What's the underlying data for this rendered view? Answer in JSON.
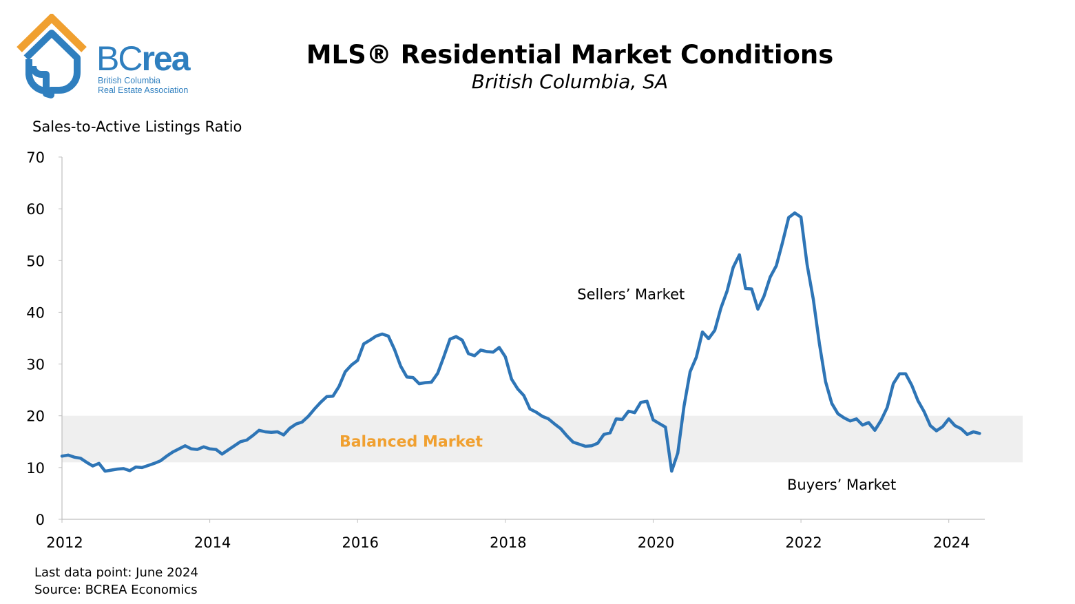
{
  "logo": {
    "mark_light": "BC",
    "mark_bold": "rea",
    "line1": "British Columbia",
    "line2": "Real Estate Association",
    "colors": {
      "orange": "#f0a030",
      "blue": "#2f7fbf"
    }
  },
  "footer": {
    "last_data": "Last data point: June 2024",
    "source": "Source: BCREA Economics"
  },
  "chart_data": {
    "type": "line",
    "title": "MLS® Residential Market Conditions",
    "subtitle": "British Columbia, SA",
    "ylabel": "Sales-to-Active Listings Ratio",
    "xlabel": "",
    "ylim": [
      0,
      70
    ],
    "yticks": [
      0,
      10,
      20,
      30,
      40,
      50,
      60,
      70
    ],
    "xlim": [
      2012,
      2025
    ],
    "xticks": [
      2012,
      2014,
      2016,
      2018,
      2020,
      2022,
      2024
    ],
    "grid": false,
    "line_color": "#2e75b6",
    "band": {
      "label": "Balanced Market",
      "y_from": 11,
      "y_to": 20,
      "fill": "#efefef",
      "label_color": "#f0a030"
    },
    "annotations": [
      {
        "text": "Sellers’ Market",
        "x": 2019.7,
        "y": 42.5
      },
      {
        "text": "Buyers’ Market",
        "x": 2022.55,
        "y": 5.7
      }
    ],
    "series": [
      {
        "start": "2012-01",
        "step": "month",
        "values": [
          12.2,
          12.4,
          12.0,
          11.8,
          11.0,
          10.3,
          10.8,
          9.3,
          9.5,
          9.7,
          9.8,
          9.4,
          10.1,
          10.0,
          10.4,
          10.8,
          11.3,
          12.2,
          13.0,
          13.6,
          14.2,
          13.6,
          13.5,
          14.0,
          13.6,
          13.5,
          12.6,
          13.4,
          14.2,
          15.0,
          15.3,
          16.2,
          17.2,
          16.9,
          16.8,
          16.9,
          16.3,
          17.6,
          18.4,
          18.8,
          19.9,
          21.3,
          22.6,
          23.7,
          23.8,
          25.7,
          28.5,
          29.8,
          30.7,
          33.9,
          34.6,
          35.4,
          35.8,
          35.4,
          32.8,
          29.6,
          27.5,
          27.4,
          26.2,
          26.4,
          26.5,
          28.2,
          31.4,
          34.8,
          35.3,
          34.6,
          32.0,
          31.6,
          32.7,
          32.4,
          32.3,
          33.2,
          31.4,
          27.1,
          25.2,
          23.9,
          21.3,
          20.7,
          19.9,
          19.4,
          18.4,
          17.5,
          16.1,
          14.9,
          14.5,
          14.1,
          14.2,
          14.7,
          16.4,
          16.7,
          19.4,
          19.3,
          20.9,
          20.6,
          22.6,
          22.8,
          19.2,
          18.5,
          17.8,
          9.3,
          12.8,
          21.8,
          28.5,
          31.3,
          36.2,
          34.9,
          36.5,
          40.8,
          44.1,
          48.7,
          51.1,
          44.6,
          44.5,
          40.6,
          43.1,
          46.8,
          49.0,
          53.5,
          58.3,
          59.2,
          58.4,
          49.2,
          42.5,
          33.9,
          26.6,
          22.4,
          20.4,
          19.6,
          19.0,
          19.4,
          18.2,
          18.7,
          17.2,
          19.1,
          21.6,
          26.2,
          28.1,
          28.1,
          25.9,
          22.9,
          20.8,
          18.1,
          17.1,
          17.9,
          19.4,
          18.1,
          17.5,
          16.4,
          16.9,
          16.6
        ]
      }
    ]
  }
}
